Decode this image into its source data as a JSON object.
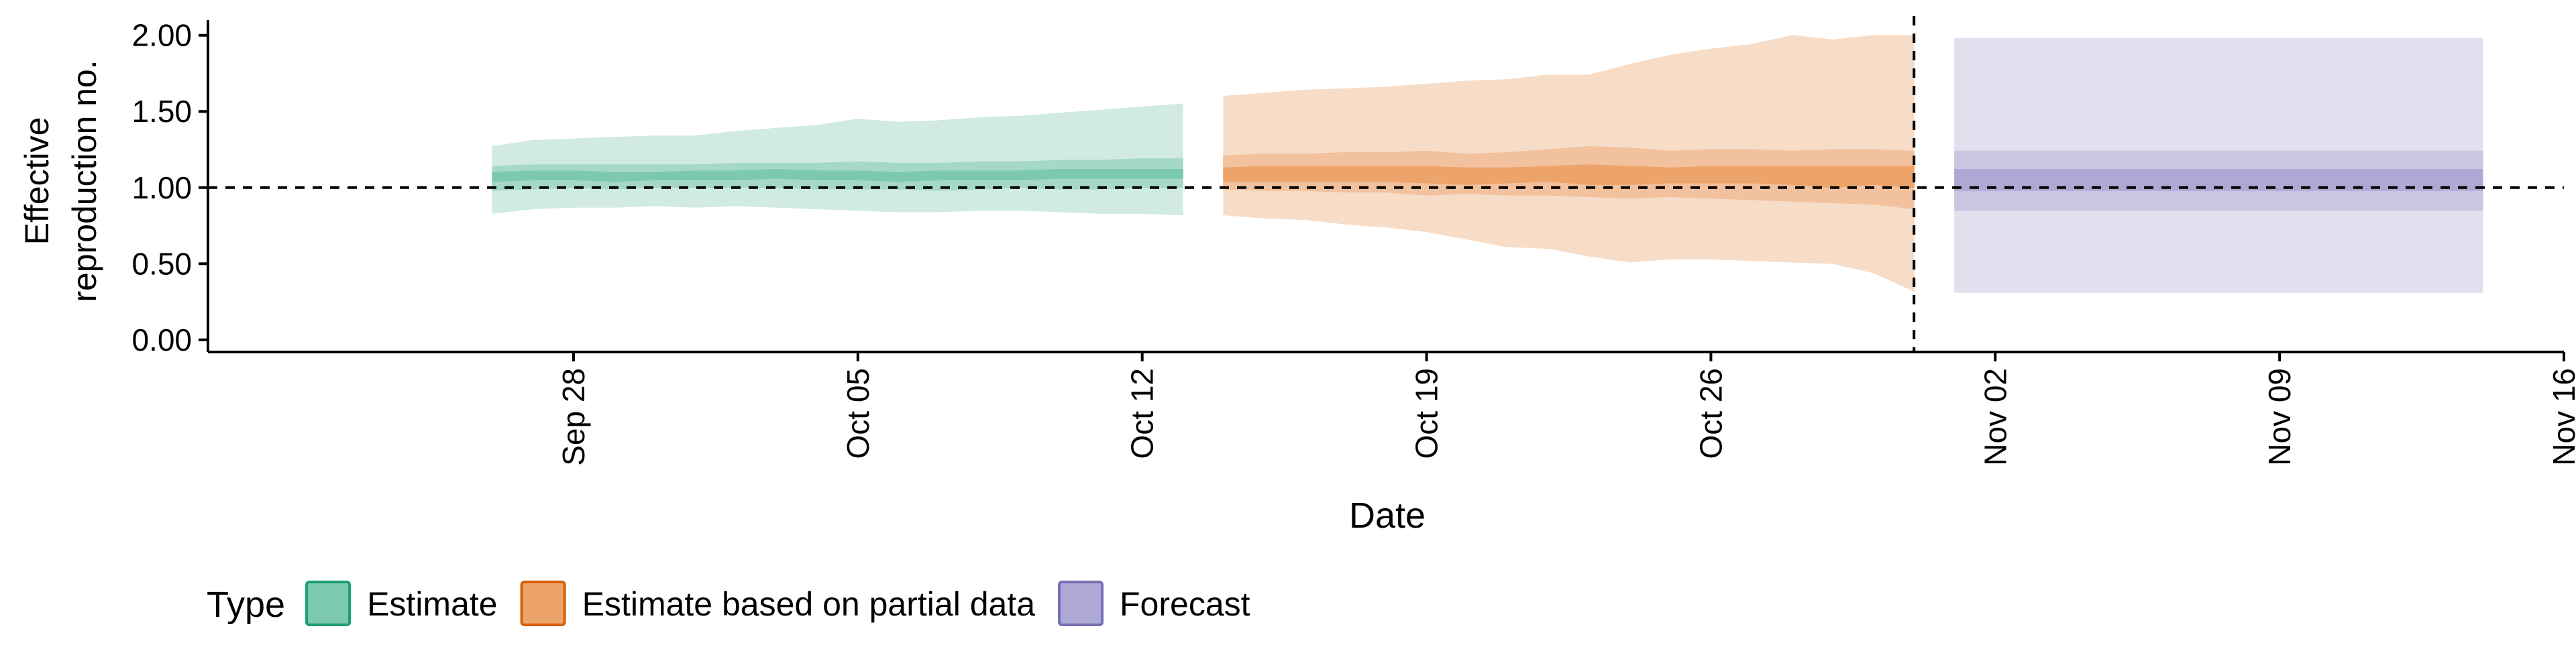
{
  "chart_data": {
    "type": "area",
    "ylabel_lines": [
      "Effective",
      "reproduction no."
    ],
    "xlabel": "Date",
    "ylim": [
      -0.08,
      2.1
    ],
    "y_ticks": [
      "0.00",
      "0.50",
      "1.00",
      "1.50",
      "2.00"
    ],
    "y_tick_values": [
      0,
      0.5,
      1.0,
      1.5,
      2.0
    ],
    "xlim": [
      "2020-09-19",
      "2020-11-16"
    ],
    "x_tick_dates": [
      "2020-09-28",
      "2020-10-05",
      "2020-10-12",
      "2020-10-19",
      "2020-10-26",
      "2020-11-02",
      "2020-11-09",
      "2020-11-16"
    ],
    "x_tick_labels": [
      "Sep 28",
      "Oct 05",
      "Oct 12",
      "Oct 19",
      "Oct 26",
      "Nov 02",
      "Nov 09",
      "Nov 16"
    ],
    "reference_hline": 1.0,
    "reference_vline_date": "2020-10-31",
    "grid": false,
    "legend": {
      "title": "Type",
      "placement": "bottom",
      "entries": [
        {
          "label": "Estimate",
          "fill": "#7DC9AE",
          "stroke": "#1B9E77"
        },
        {
          "label": "Estimate based on partial data",
          "fill": "#EDA46A",
          "stroke": "#D95F02"
        },
        {
          "label": "Forecast",
          "fill": "#ADA9D4",
          "stroke": "#7570B3"
        }
      ]
    },
    "series": [
      {
        "name": "Estimate",
        "colors": {
          "band90": "#D1EBE2",
          "band50": "#A5D9C6",
          "band20": "#7DC9AE"
        },
        "dates": [
          "2020-09-26",
          "2020-09-27",
          "2020-09-28",
          "2020-09-29",
          "2020-09-30",
          "2020-10-01",
          "2020-10-02",
          "2020-10-03",
          "2020-10-04",
          "2020-10-05",
          "2020-10-06",
          "2020-10-07",
          "2020-10-08",
          "2020-10-09",
          "2020-10-10",
          "2020-10-11",
          "2020-10-12",
          "2020-10-13"
        ],
        "lower_90": [
          0.83,
          0.86,
          0.87,
          0.87,
          0.88,
          0.87,
          0.88,
          0.87,
          0.86,
          0.85,
          0.84,
          0.84,
          0.85,
          0.85,
          0.84,
          0.83,
          0.83,
          0.82
        ],
        "upper_90": [
          1.27,
          1.31,
          1.32,
          1.33,
          1.34,
          1.34,
          1.37,
          1.39,
          1.41,
          1.45,
          1.43,
          1.44,
          1.46,
          1.47,
          1.49,
          1.51,
          1.53,
          1.55
        ],
        "lower_50": [
          0.98,
          0.99,
          1.0,
          0.99,
          1.0,
          1.0,
          1.0,
          1.0,
          0.99,
          0.99,
          0.99,
          0.98,
          0.99,
          1.0,
          0.99,
          0.99,
          1.0,
          1.0
        ],
        "upper_50": [
          1.14,
          1.15,
          1.15,
          1.15,
          1.15,
          1.15,
          1.16,
          1.16,
          1.16,
          1.17,
          1.16,
          1.16,
          1.17,
          1.17,
          1.18,
          1.18,
          1.19,
          1.19
        ],
        "lower_20": [
          1.04,
          1.05,
          1.05,
          1.04,
          1.05,
          1.05,
          1.05,
          1.06,
          1.05,
          1.05,
          1.04,
          1.05,
          1.05,
          1.05,
          1.06,
          1.06,
          1.06,
          1.06
        ],
        "upper_20": [
          1.1,
          1.11,
          1.11,
          1.1,
          1.1,
          1.11,
          1.11,
          1.12,
          1.11,
          1.11,
          1.1,
          1.11,
          1.11,
          1.11,
          1.12,
          1.12,
          1.12,
          1.12
        ]
      },
      {
        "name": "Estimate based on partial data",
        "colors": {
          "band90": "#F7DDC8",
          "band50": "#F2C19D",
          "band20": "#EDA46A"
        },
        "dates": [
          "2020-10-14",
          "2020-10-15",
          "2020-10-16",
          "2020-10-17",
          "2020-10-18",
          "2020-10-19",
          "2020-10-20",
          "2020-10-21",
          "2020-10-22",
          "2020-10-23",
          "2020-10-24",
          "2020-10-25",
          "2020-10-26",
          "2020-10-27",
          "2020-10-28",
          "2020-10-29",
          "2020-10-30",
          "2020-10-31"
        ],
        "lower_90": [
          0.82,
          0.8,
          0.79,
          0.76,
          0.74,
          0.71,
          0.66,
          0.61,
          0.6,
          0.55,
          0.51,
          0.53,
          0.53,
          0.52,
          0.51,
          0.5,
          0.44,
          0.32
        ],
        "upper_90": [
          1.6,
          1.62,
          1.64,
          1.65,
          1.66,
          1.68,
          1.7,
          1.71,
          1.74,
          1.74,
          1.81,
          1.87,
          1.91,
          1.94,
          2.0,
          1.97,
          2.0,
          2.0
        ],
        "lower_50": [
          0.99,
          0.98,
          0.98,
          0.97,
          0.97,
          0.95,
          0.96,
          0.95,
          0.95,
          0.94,
          0.93,
          0.94,
          0.93,
          0.92,
          0.91,
          0.9,
          0.89,
          0.86
        ],
        "upper_50": [
          1.21,
          1.22,
          1.22,
          1.23,
          1.23,
          1.24,
          1.22,
          1.23,
          1.25,
          1.27,
          1.26,
          1.24,
          1.25,
          1.25,
          1.24,
          1.25,
          1.25,
          1.24
        ],
        "lower_20": [
          1.04,
          1.04,
          1.04,
          1.04,
          1.04,
          1.03,
          1.02,
          1.03,
          1.04,
          1.02,
          1.02,
          1.03,
          1.03,
          1.03,
          1.02,
          1.0,
          1.02,
          1.0
        ],
        "upper_20": [
          1.13,
          1.14,
          1.14,
          1.14,
          1.14,
          1.14,
          1.13,
          1.13,
          1.14,
          1.15,
          1.14,
          1.13,
          1.14,
          1.14,
          1.14,
          1.14,
          1.14,
          1.14
        ]
      },
      {
        "name": "Forecast",
        "colors": {
          "band90": "#E1E0EE",
          "band50": "#C9C7E1",
          "band20": "#ADA9D4"
        },
        "dates": [
          "2020-11-01",
          "2020-11-14"
        ],
        "lower_90": [
          0.31,
          0.31
        ],
        "upper_90": [
          1.98,
          1.98
        ],
        "lower_50": [
          0.85,
          0.85
        ],
        "upper_50": [
          1.24,
          1.24
        ],
        "lower_20": [
          0.98,
          0.98
        ],
        "upper_20": [
          1.12,
          1.12
        ]
      }
    ]
  }
}
